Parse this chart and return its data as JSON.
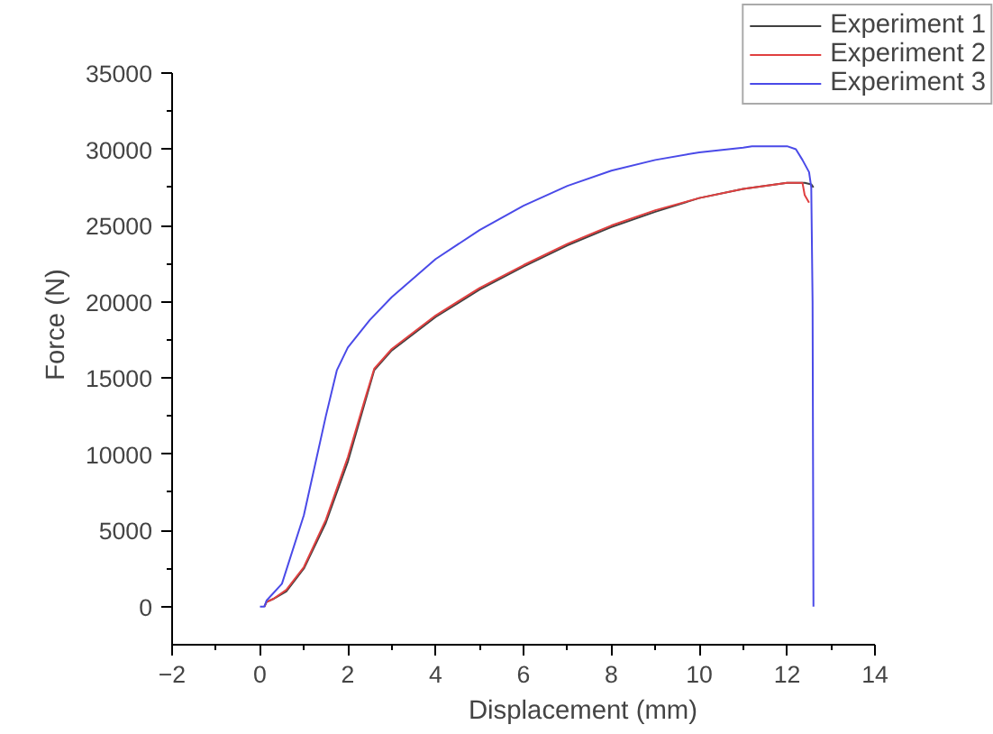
{
  "chart_data": {
    "type": "line",
    "xlabel": "Displacement (mm)",
    "ylabel": "Force (N)",
    "xlim": [
      -2,
      14
    ],
    "ylim": [
      -2500,
      35000
    ],
    "xticks": [
      -2,
      {
        "value": -1,
        "label": null
      },
      0,
      {
        "value": 1,
        "label": null
      },
      2,
      {
        "value": 3,
        "label": null
      },
      4,
      {
        "value": 5,
        "label": null
      },
      6,
      {
        "value": 7,
        "label": null
      },
      8,
      {
        "value": 9,
        "label": null
      },
      10,
      {
        "value": 11,
        "label": null
      },
      12,
      {
        "value": 13,
        "label": null
      },
      14
    ],
    "yticks": [
      0,
      {
        "value": 2500,
        "label": null
      },
      5000,
      {
        "value": 7500,
        "label": null
      },
      10000,
      {
        "value": 12500,
        "label": null
      },
      15000,
      {
        "value": 17500,
        "label": null
      },
      20000,
      {
        "value": 22500,
        "label": null
      },
      25000,
      {
        "value": 27500,
        "label": null
      },
      30000,
      {
        "value": 32500,
        "label": null
      },
      35000
    ],
    "grid": false,
    "legend": "top right",
    "marker": "none",
    "line_style": "solid",
    "series": [
      {
        "name": "Experiment 1",
        "color": "#404040",
        "x": [
          0.1,
          0.15,
          0.3,
          0.6,
          1.0,
          1.5,
          2.0,
          2.4,
          2.6,
          3,
          4,
          5,
          6,
          7,
          8,
          9,
          10,
          11,
          12,
          12.4,
          12.55,
          12.6
        ],
        "values": [
          0,
          300,
          500,
          1000,
          2500,
          5500,
          9500,
          13500,
          15500,
          16800,
          19000,
          20800,
          22300,
          23700,
          24900,
          25900,
          26800,
          27400,
          27800,
          27800,
          27700,
          27500
        ]
      },
      {
        "name": "Experiment 2",
        "color": "#e04040",
        "x": [
          0.1,
          0.15,
          0.3,
          0.6,
          1.0,
          1.5,
          2.0,
          2.4,
          2.6,
          3,
          4,
          5,
          6,
          7,
          8,
          9,
          10,
          11,
          12,
          12.35,
          12.4,
          12.5
        ],
        "values": [
          0,
          300,
          500,
          1100,
          2600,
          5700,
          9800,
          13700,
          15600,
          16900,
          19100,
          20900,
          22400,
          23800,
          25000,
          26000,
          26800,
          27400,
          27800,
          27800,
          27000,
          26500
        ]
      },
      {
        "name": "Experiment 3",
        "color": "#4a4ae8",
        "x": [
          0,
          0.1,
          0.15,
          0.5,
          1.0,
          1.5,
          1.75,
          2,
          2.5,
          3,
          4,
          5,
          6,
          7,
          8,
          9,
          10,
          11,
          11.2,
          12,
          12.2,
          12.35,
          12.5,
          12.55,
          12.58,
          12.6
        ],
        "values": [
          0,
          0,
          400,
          1500,
          6000,
          12500,
          15500,
          17000,
          18800,
          20300,
          22800,
          24700,
          26300,
          27600,
          28600,
          29300,
          29800,
          30100,
          30200,
          30200,
          30000,
          29300,
          28500,
          27500,
          20000,
          0
        ]
      }
    ]
  }
}
